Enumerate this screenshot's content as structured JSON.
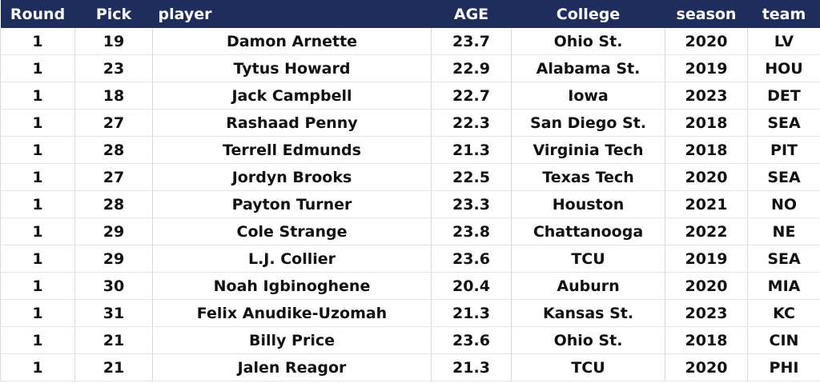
{
  "table": {
    "header": [
      "Round",
      "Pick",
      "player",
      "AGE",
      "College",
      "season",
      "team"
    ],
    "rows": [
      [
        1,
        19,
        "Damon Arnette",
        23.7,
        "Ohio St.",
        2020,
        "LV"
      ],
      [
        1,
        23,
        "Tytus Howard",
        22.9,
        "Alabama St.",
        2019,
        "HOU"
      ],
      [
        1,
        18,
        "Jack Campbell",
        22.7,
        "Iowa",
        2023,
        "DET"
      ],
      [
        1,
        27,
        "Rashaad Penny",
        22.3,
        "San Diego St.",
        2018,
        "SEA"
      ],
      [
        1,
        28,
        "Terrell Edmunds",
        21.3,
        "Virginia Tech",
        2018,
        "PIT"
      ],
      [
        1,
        27,
        "Jordyn Brooks",
        22.5,
        "Texas Tech",
        2020,
        "SEA"
      ],
      [
        1,
        28,
        "Payton Turner",
        23.3,
        "Houston",
        2021,
        "NO"
      ],
      [
        1,
        29,
        "Cole Strange",
        23.8,
        "Chattanooga",
        2022,
        "NE"
      ],
      [
        1,
        29,
        "L.J. Collier",
        23.6,
        "TCU",
        2019,
        "SEA"
      ],
      [
        1,
        30,
        "Noah Igbinoghene",
        20.4,
        "Auburn",
        2020,
        "MIA"
      ],
      [
        1,
        31,
        "Felix Anudike-Uzomah",
        21.3,
        "Kansas St.",
        2023,
        "KC"
      ],
      [
        1,
        21,
        "Billy Price",
        23.6,
        "Ohio St.",
        2018,
        "CIN"
      ],
      [
        1,
        21,
        "Jalen Reagor",
        21.3,
        "TCU",
        2020,
        "PHI"
      ]
    ]
  }
}
